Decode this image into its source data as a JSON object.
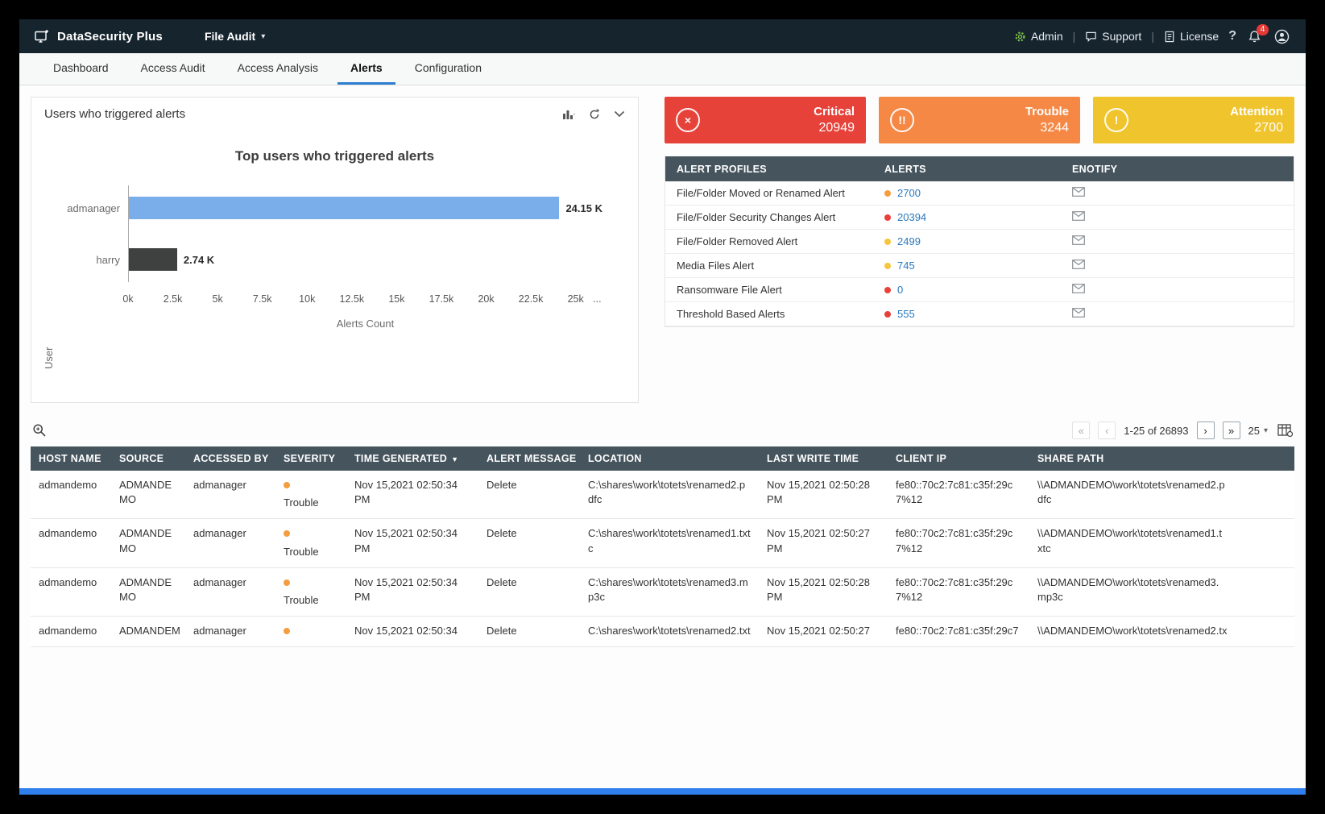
{
  "topbar": {
    "brand": "DataSecurity Plus",
    "module": "File Audit",
    "admin": "Admin",
    "support": "Support",
    "license": "License",
    "help": "?",
    "notification_count": "4"
  },
  "tabs": [
    "Dashboard",
    "Access Audit",
    "Access Analysis",
    "Alerts",
    "Configuration"
  ],
  "chart_panel": {
    "title": "Users who triggered alerts"
  },
  "chart_data": {
    "type": "bar",
    "orientation": "horizontal",
    "title": "Top users who triggered alerts",
    "xlabel": "Alerts Count",
    "ylabel": "User",
    "categories": [
      "admanager",
      "harry"
    ],
    "values": [
      24150,
      2740
    ],
    "bars": [
      {
        "category": "admanager",
        "value": 24150,
        "label": "24.15 K",
        "color": "#79aeea"
      },
      {
        "category": "harry",
        "value": 2740,
        "label": "2.74 K",
        "color": "#3f4040"
      }
    ],
    "axis_max": 26500,
    "xlim": [
      0,
      25000
    ],
    "xticks": [
      {
        "value": 0,
        "label": "0k"
      },
      {
        "value": 2500,
        "label": "2.5k"
      },
      {
        "value": 5000,
        "label": "5k"
      },
      {
        "value": 7500,
        "label": "7.5k"
      },
      {
        "value": 10000,
        "label": "10k"
      },
      {
        "value": 12500,
        "label": "12.5k"
      },
      {
        "value": 15000,
        "label": "15k"
      },
      {
        "value": 17500,
        "label": "17.5k"
      },
      {
        "value": 20000,
        "label": "20k"
      },
      {
        "value": 22500,
        "label": "22.5k"
      },
      {
        "value": 25000,
        "label": "25k"
      },
      {
        "value": 26200,
        "label": "..."
      }
    ],
    "legend": false,
    "grid": false
  },
  "status_cards": [
    {
      "label": "Critical",
      "value": "20949",
      "color": "#e6423a",
      "icon_glyph": "×"
    },
    {
      "label": "Trouble",
      "value": "3244",
      "color": "#f58845",
      "icon_glyph": "!!"
    },
    {
      "label": "Attention",
      "value": "2700",
      "color": "#f0c42d",
      "icon_glyph": "!"
    }
  ],
  "alert_profiles": {
    "headers": {
      "profile": "ALERT PROFILES",
      "alerts": "ALERTS",
      "enotify": "ENOTIFY"
    },
    "rows": [
      {
        "profile": "File/Folder Moved or Renamed Alert",
        "count": "2700",
        "dot_color": "#f49d3f"
      },
      {
        "profile": "File/Folder Security Changes Alert",
        "count": "20394",
        "dot_color": "#e8403a"
      },
      {
        "profile": "File/Folder Removed Alert",
        "count": "2499",
        "dot_color": "#f4c63f"
      },
      {
        "profile": "Media Files Alert",
        "count": "745",
        "dot_color": "#f4c63f"
      },
      {
        "profile": "Ransomware File Alert",
        "count": "0",
        "dot_color": "#e8403a"
      },
      {
        "profile": "Threshold Based Alerts",
        "count": "555",
        "dot_color": "#e8403a"
      }
    ]
  },
  "table_toolbar": {
    "pagination_range": "1-25 of 26893",
    "page_size": "25",
    "first": "«",
    "prev": "‹",
    "next": "›",
    "last": "»"
  },
  "alerts_table": {
    "headers": [
      "HOST NAME",
      "SOURCE",
      "ACCESSED BY",
      "SEVERITY",
      "TIME GENERATED",
      "ALERT MESSAGE",
      "LOCATION",
      "LAST WRITE TIME",
      "CLIENT IP",
      "SHARE PATH"
    ],
    "sorted_by": "TIME GENERATED",
    "rows": [
      {
        "host": "admandemo",
        "source": "ADMANDEMO",
        "accessed_by": "admanager",
        "severity": "Trouble",
        "severity_color": "#f49d3f",
        "time_generated": "Nov 15,2021 02:50:34 PM",
        "alert_message": "Delete",
        "location": "C:\\shares\\work\\totets\\renamed2.pdfc",
        "last_write_time": "Nov 15,2021 02:50:28 PM",
        "client_ip": "fe80::70c2:7c81:c35f:29c7%12",
        "share_path": "\\\\ADMANDEMO\\work\\totets\\renamed2.pdfc"
      },
      {
        "host": "admandemo",
        "source": "ADMANDEMO",
        "accessed_by": "admanager",
        "severity": "Trouble",
        "severity_color": "#f49d3f",
        "time_generated": "Nov 15,2021 02:50:34 PM",
        "alert_message": "Delete",
        "location": "C:\\shares\\work\\totets\\renamed1.txtc",
        "last_write_time": "Nov 15,2021 02:50:27 PM",
        "client_ip": "fe80::70c2:7c81:c35f:29c7%12",
        "share_path": "\\\\ADMANDEMO\\work\\totets\\renamed1.txtc"
      },
      {
        "host": "admandemo",
        "source": "ADMANDEMO",
        "accessed_by": "admanager",
        "severity": "Trouble",
        "severity_color": "#f49d3f",
        "time_generated": "Nov 15,2021 02:50:34 PM",
        "alert_message": "Delete",
        "location": "C:\\shares\\work\\totets\\renamed3.mp3c",
        "last_write_time": "Nov 15,2021 02:50:28 PM",
        "client_ip": "fe80::70c2:7c81:c35f:29c7%12",
        "share_path": "\\\\ADMANDEMO\\work\\totets\\renamed3.mp3c"
      },
      {
        "host": "admandemo",
        "source": "ADMANDEM",
        "accessed_by": "admanager",
        "severity": "",
        "severity_color": "#f49d3f",
        "time_generated": "Nov 15,2021 02:50:34",
        "alert_message": "Delete",
        "location": "C:\\shares\\work\\totets\\renamed2.txt",
        "last_write_time": "Nov 15,2021 02:50:27",
        "client_ip": "fe80::70c2:7c81:c35f:29c7",
        "share_path": "\\\\ADMANDEMO\\work\\totets\\renamed2.tx"
      }
    ]
  }
}
